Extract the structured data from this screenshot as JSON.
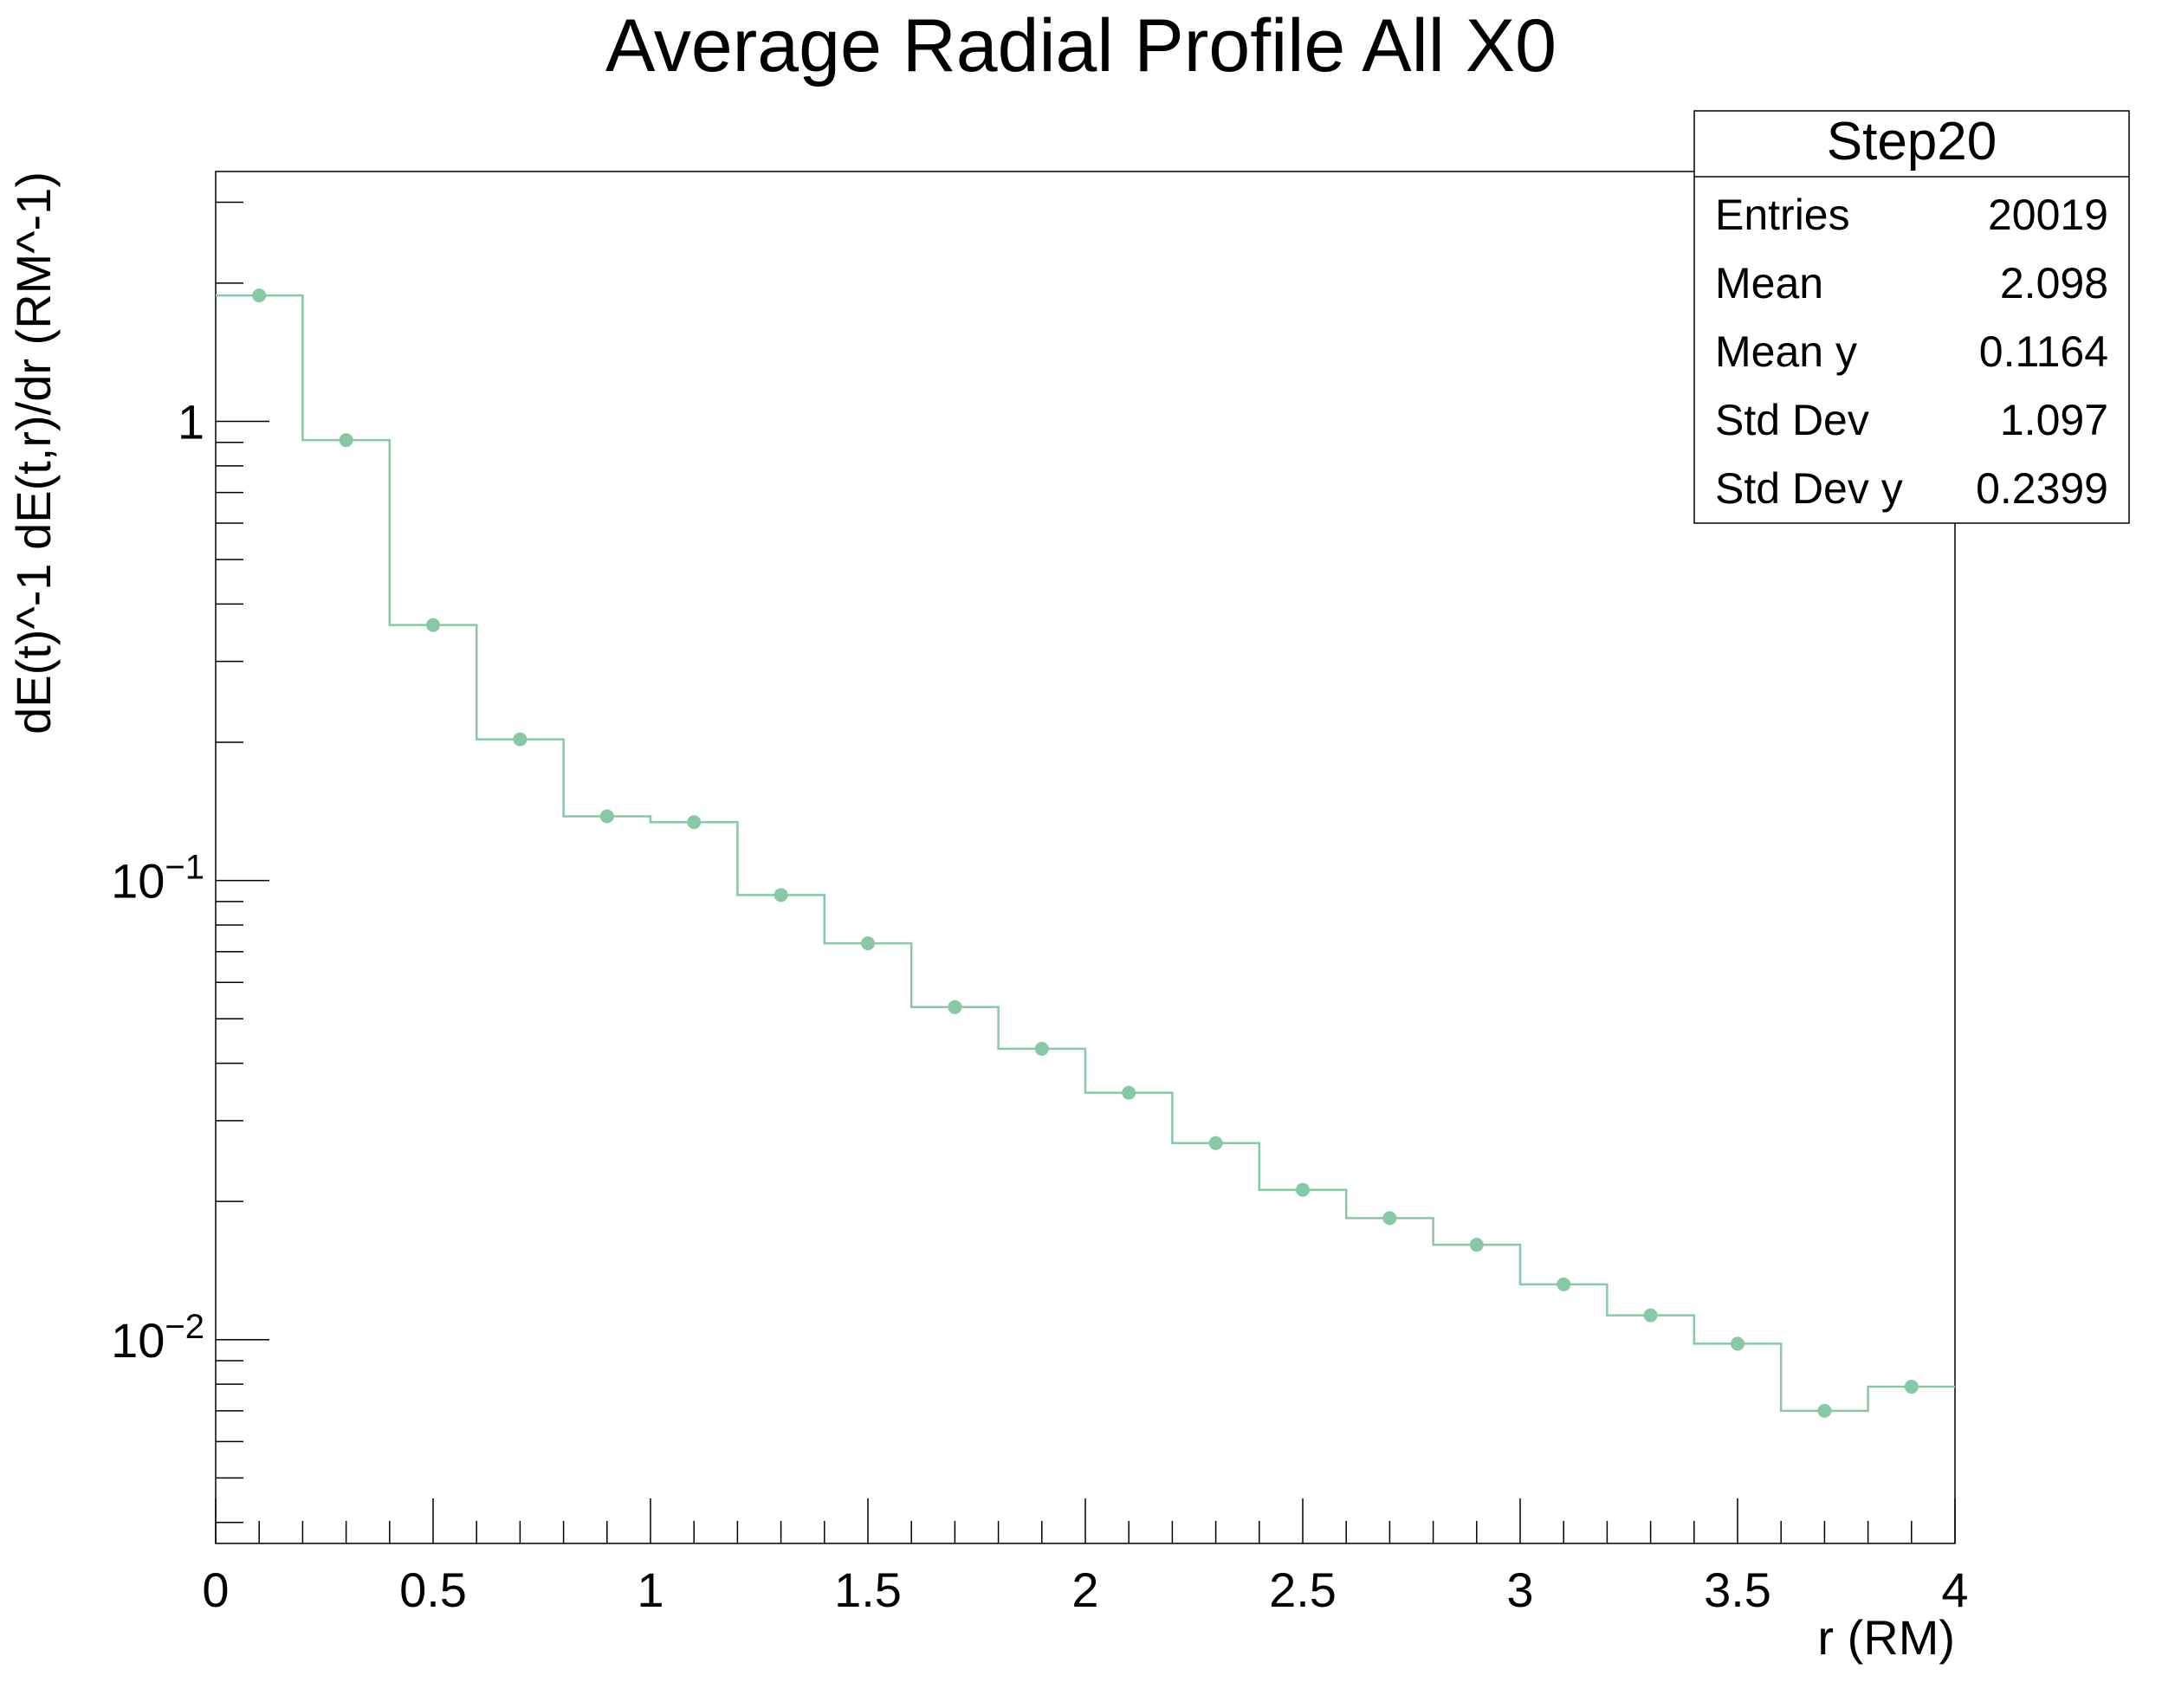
{
  "chart_data": {
    "type": "line",
    "style": "step-histogram-with-markers",
    "title": "Average Radial Profile All X0",
    "xlabel": "r (RM)",
    "ylabel": "dE(t)^-1 dE(t,r)/dr (RM^-1)",
    "xlim": [
      0,
      4
    ],
    "ylim": [
      0.0036,
      3.5
    ],
    "yscale": "log",
    "grid": false,
    "x_tick_labels": [
      "0",
      "0.5",
      "1",
      "1.5",
      "2",
      "2.5",
      "3",
      "3.5",
      "4"
    ],
    "y_tick_labels": [
      {
        "value": 1,
        "base": "1",
        "exp": ""
      },
      {
        "value": 0.1,
        "base": "10",
        "exp": "−1"
      },
      {
        "value": 0.01,
        "base": "10",
        "exp": "−2"
      }
    ],
    "bin_edges": [
      0,
      0.2,
      0.4,
      0.6,
      0.8,
      1.0,
      1.2,
      1.4,
      1.6,
      1.8,
      2.0,
      2.2,
      2.4,
      2.6,
      2.8,
      3.0,
      3.2,
      3.4,
      3.6,
      3.8,
      4.0
    ],
    "series": [
      {
        "x": [
          0.1,
          0.3,
          0.5,
          0.7,
          0.9,
          1.1,
          1.3,
          1.5,
          1.7,
          1.9,
          2.1,
          2.3,
          2.5,
          2.7,
          2.9,
          3.1,
          3.3,
          3.5,
          3.7,
          3.9
        ],
        "values": [
          1.88,
          0.91,
          0.36,
          0.203,
          0.138,
          0.134,
          0.093,
          0.073,
          0.053,
          0.043,
          0.0345,
          0.0268,
          0.0212,
          0.0184,
          0.0161,
          0.0132,
          0.0113,
          0.0098,
          0.007,
          0.0079
        ],
        "color": "#88c9a5"
      }
    ],
    "stats_box": {
      "title": "Step20",
      "rows": [
        {
          "label": "Entries",
          "value": "20019"
        },
        {
          "label": "Mean",
          "value": "2.098"
        },
        {
          "label": "Mean y",
          "value": "0.1164"
        },
        {
          "label": "Std Dev",
          "value": "1.097"
        },
        {
          "label": "Std Dev y",
          "value": "0.2399"
        }
      ]
    }
  }
}
